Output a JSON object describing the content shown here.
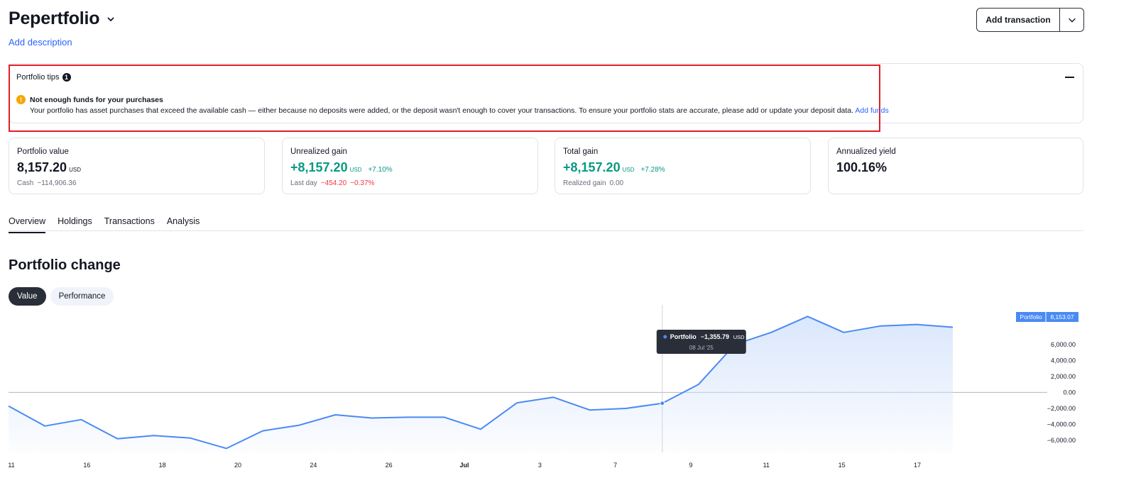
{
  "header": {
    "title": "Pepertfolio",
    "add_description": "Add description",
    "add_transaction": "Add transaction"
  },
  "tips": {
    "title": "Portfolio tips",
    "count": "1",
    "warning_title": "Not enough funds for your purchases",
    "warning_message": "Your portfolio has asset purchases that exceed the available cash — either because no deposits were added, or the deposit wasn't enough to cover your transactions. To ensure your portfolio stats are accurate, please add or update your deposit data.",
    "warning_link": "Add funds"
  },
  "stats": [
    {
      "label": "Portfolio value",
      "value": "8,157.20",
      "unit": "USD",
      "pct": "",
      "sub_label": "Cash",
      "sub_value": "−114,906.36",
      "sub_pct": ""
    },
    {
      "label": "Unrealized gain",
      "value": "+8,157.20",
      "unit": "USD",
      "pct": "+7.10%",
      "sub_label": "Last day",
      "sub_value": "−454.20",
      "sub_pct": "−0.37%"
    },
    {
      "label": "Total gain",
      "value": "+8,157.20",
      "unit": "USD",
      "pct": "+7.28%",
      "sub_label": "Realized gain",
      "sub_value": "0.00",
      "sub_pct": ""
    },
    {
      "label": "Annualized yield",
      "value": "100.16%",
      "unit": "",
      "pct": "",
      "sub_label": "",
      "sub_value": "",
      "sub_pct": ""
    }
  ],
  "tabs": [
    "Overview",
    "Holdings",
    "Transactions",
    "Analysis"
  ],
  "section": {
    "title": "Portfolio change",
    "pill_value": "Value",
    "pill_performance": "Performance"
  },
  "colors": {
    "line": "#4a8af4",
    "fill_top": "#d6e4fb",
    "green": "#089981",
    "red": "#f23645",
    "highlight": "#e01f26"
  },
  "chart_data": {
    "type": "area",
    "series": [
      {
        "name": "Portfolio",
        "values": [
          -1700,
          -4200,
          -3400,
          -5800,
          -5400,
          -5700,
          -7000,
          -4800,
          -4100,
          -2800,
          -3200,
          -3100,
          -3100,
          -4600,
          -1300,
          -600,
          -2200,
          -2000,
          -1355.79,
          1000,
          6000,
          7500,
          9500,
          7500,
          8300,
          8500,
          8153.07
        ]
      }
    ],
    "x_tick_labels": [
      "11",
      "16",
      "18",
      "20",
      "24",
      "26",
      "Jul",
      "3",
      "7",
      "9",
      "11",
      "15",
      "17"
    ],
    "y_ticks": [
      6000,
      4000,
      2000,
      0,
      -2000,
      -4000,
      -6000
    ],
    "y_tick_labels": [
      "6,000.00",
      "4,000.00",
      "2,000.00",
      "0.00",
      "−2,000.00",
      "−4,000.00",
      "−6,000.00"
    ],
    "ylim": [
      -7500,
      10500
    ],
    "last_label_name": "Portfolio",
    "last_label_value": "8,153.07",
    "tooltip": {
      "index": 18,
      "name": "Portfolio",
      "value": "−1,355.79",
      "unit": "USD",
      "date": "08 Jul '25"
    }
  }
}
